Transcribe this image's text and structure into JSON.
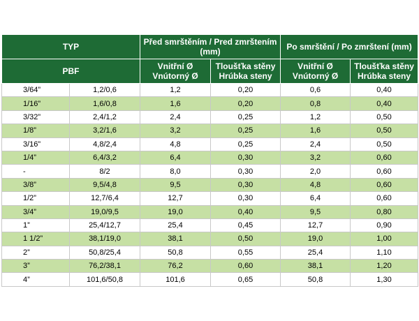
{
  "header": {
    "typ": "TYP",
    "pbf": "PBF",
    "before_group": "Před smrštěním / Pred zmrštením (mm)",
    "after_group": "Po smrštění / Po zmrštení (mm)",
    "inner_diameter": "Vnitřní Ø Vnútorný Ø",
    "wall_thickness": "Tloušťka stěny Hrúbka steny"
  },
  "colors": {
    "header_bg": "#1e6b35",
    "band_bg": "#c6e0a4"
  },
  "rows": [
    {
      "typ": "3/64”",
      "pbf": "1,2/0,6",
      "before_inner": "1,2",
      "before_wall": "0,20",
      "after_inner": "0,6",
      "after_wall": "0,40"
    },
    {
      "typ": "1/16”",
      "pbf": "1,6/0,8",
      "before_inner": "1,6",
      "before_wall": "0,20",
      "after_inner": "0,8",
      "after_wall": "0,40"
    },
    {
      "typ": "3/32”",
      "pbf": "2,4/1,2",
      "before_inner": "2,4",
      "before_wall": "0,25",
      "after_inner": "1,2",
      "after_wall": "0,50"
    },
    {
      "typ": "1/8”",
      "pbf": "3,2/1,6",
      "before_inner": "3,2",
      "before_wall": "0,25",
      "after_inner": "1,6",
      "after_wall": "0,50"
    },
    {
      "typ": "3/16”",
      "pbf": "4,8/2,4",
      "before_inner": "4,8",
      "before_wall": "0,25",
      "after_inner": "2,4",
      "after_wall": "0,50"
    },
    {
      "typ": "1/4”",
      "pbf": "6,4/3,2",
      "before_inner": "6,4",
      "before_wall": "0,30",
      "after_inner": "3,2",
      "after_wall": "0,60"
    },
    {
      "typ": "-",
      "pbf": "8/2",
      "before_inner": "8,0",
      "before_wall": "0,30",
      "after_inner": "2,0",
      "after_wall": "0,60"
    },
    {
      "typ": "3/8”",
      "pbf": "9,5/4,8",
      "before_inner": "9,5",
      "before_wall": "0,30",
      "after_inner": "4,8",
      "after_wall": "0,60"
    },
    {
      "typ": "1/2”",
      "pbf": "12,7/6,4",
      "before_inner": "12,7",
      "before_wall": "0,30",
      "after_inner": "6,4",
      "after_wall": "0,60"
    },
    {
      "typ": "3/4”",
      "pbf": "19,0/9,5",
      "before_inner": "19,0",
      "before_wall": "0,40",
      "after_inner": "9,5",
      "after_wall": "0,80"
    },
    {
      "typ": "1”",
      "pbf": "25,4/12,7",
      "before_inner": "25,4",
      "before_wall": "0,45",
      "after_inner": "12,7",
      "after_wall": "0,90"
    },
    {
      "typ": "1 1/2”",
      "pbf": "38,1/19,0",
      "before_inner": "38,1",
      "before_wall": "0,50",
      "after_inner": "19,0",
      "after_wall": "1,00"
    },
    {
      "typ": "2”",
      "pbf": "50,8/25,4",
      "before_inner": "50,8",
      "before_wall": "0,55",
      "after_inner": "25,4",
      "after_wall": "1,10"
    },
    {
      "typ": "3”",
      "pbf": "76,2/38,1",
      "before_inner": "76,2",
      "before_wall": "0,60",
      "after_inner": "38,1",
      "after_wall": "1,20"
    },
    {
      "typ": "4”",
      "pbf": "101,6/50,8",
      "before_inner": "101,6",
      "before_wall": "0,65",
      "after_inner": "50,8",
      "after_wall": "1,30"
    }
  ]
}
